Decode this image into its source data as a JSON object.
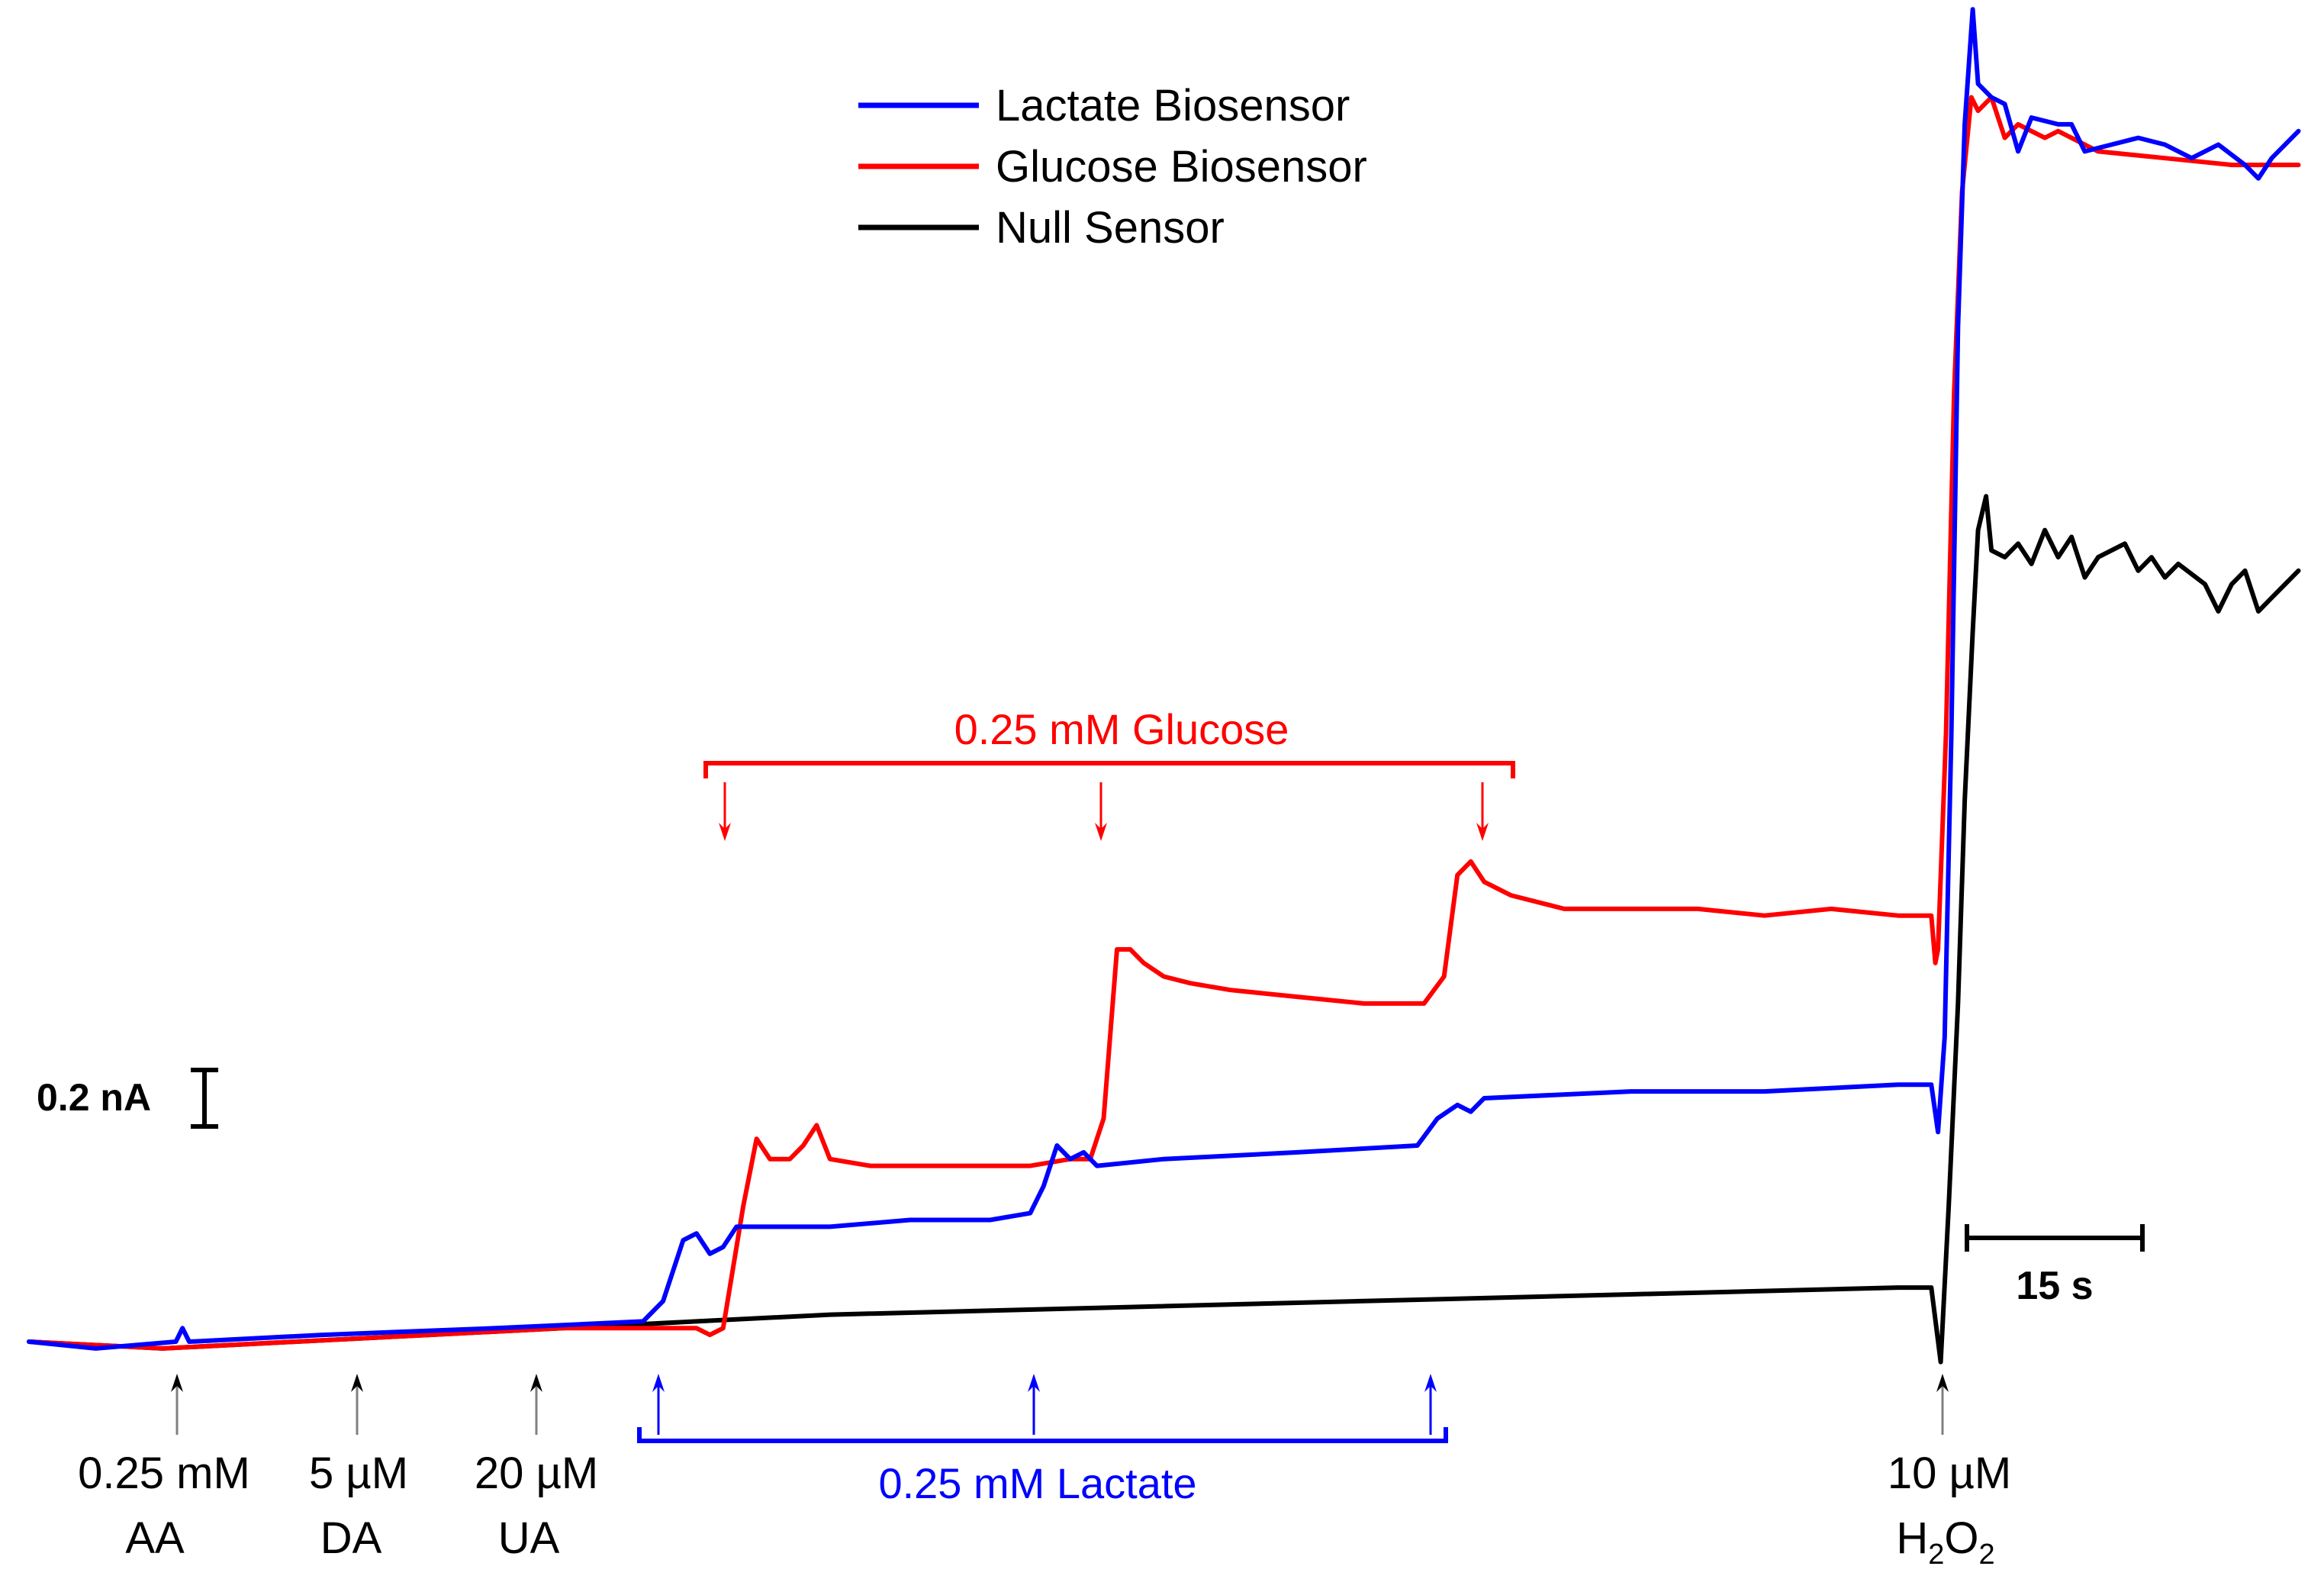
{
  "legend": {
    "placement": "top-center",
    "entries": [
      {
        "label": "Lactate Biosensor",
        "color": "#0000ff"
      },
      {
        "label": "Glucose Biosensor",
        "color": "#ff0000"
      },
      {
        "label": "Null Sensor",
        "color": "#000000"
      }
    ]
  },
  "scale_bars": {
    "current_label": "0.2 nA",
    "time_label": "15 s"
  },
  "annotations": {
    "glucose_bracket_label": "0.25 mM Glucose",
    "lactate_bracket_label": "0.25 mM Lactate",
    "interferents": [
      {
        "line1": "0.25 mM",
        "line2": "AA"
      },
      {
        "line1": "5 µM",
        "line2": "DA"
      },
      {
        "line1": "20 µM",
        "line2": "UA"
      }
    ],
    "h2o2": {
      "line1": "10 µM",
      "h": "H",
      "sub1": "2",
      "o": "O",
      "sub2": "2"
    }
  },
  "colors": {
    "lactate": "#0000ff",
    "glucose": "#ff0000",
    "null": "#000000",
    "arrow_gray": "#808080"
  },
  "chart_data": {
    "type": "line",
    "title": "",
    "xlabel": "",
    "ylabel": "",
    "grid": false,
    "x_units": "s",
    "y_units": "nA",
    "xlim": [
      0,
      171
    ],
    "ylim": [
      0,
      1.95
    ],
    "series": [
      {
        "name": "Lactate Biosensor",
        "color": "#0000ff",
        "points": [
          [
            0,
            0.0
          ],
          [
            5,
            -0.01
          ],
          [
            11,
            0.0
          ],
          [
            11.5,
            0.02
          ],
          [
            12,
            0.0
          ],
          [
            22,
            0.01
          ],
          [
            35,
            0.02
          ],
          [
            46,
            0.03
          ],
          [
            47.5,
            0.06
          ],
          [
            49,
            0.15
          ],
          [
            50,
            0.16
          ],
          [
            51,
            0.13
          ],
          [
            52,
            0.14
          ],
          [
            53,
            0.17
          ],
          [
            55,
            0.17
          ],
          [
            60,
            0.17
          ],
          [
            66,
            0.18
          ],
          [
            72,
            0.18
          ],
          [
            75,
            0.19
          ],
          [
            76,
            0.23
          ],
          [
            77,
            0.29
          ],
          [
            78,
            0.27
          ],
          [
            79,
            0.28
          ],
          [
            80,
            0.26
          ],
          [
            85,
            0.27
          ],
          [
            95,
            0.28
          ],
          [
            104,
            0.29
          ],
          [
            105.5,
            0.33
          ],
          [
            107,
            0.35
          ],
          [
            108,
            0.34
          ],
          [
            109,
            0.36
          ],
          [
            120,
            0.37
          ],
          [
            130,
            0.37
          ],
          [
            140,
            0.38
          ],
          [
            142.5,
            0.38
          ],
          [
            143,
            0.31
          ],
          [
            143.5,
            0.45
          ],
          [
            144,
            0.9
          ],
          [
            144.5,
            1.5
          ],
          [
            145,
            1.8
          ],
          [
            145.6,
            1.97
          ],
          [
            146,
            1.86
          ],
          [
            147,
            1.84
          ],
          [
            148,
            1.83
          ],
          [
            149,
            1.76
          ],
          [
            150,
            1.81
          ],
          [
            152,
            1.8
          ],
          [
            153,
            1.8
          ],
          [
            154,
            1.76
          ],
          [
            156,
            1.77
          ],
          [
            158,
            1.78
          ],
          [
            160,
            1.77
          ],
          [
            162,
            1.75
          ],
          [
            164,
            1.77
          ],
          [
            166,
            1.74
          ],
          [
            167,
            1.72
          ],
          [
            168,
            1.75
          ],
          [
            170,
            1.79
          ]
        ]
      },
      {
        "name": "Glucose Biosensor",
        "color": "#ff0000",
        "points": [
          [
            0,
            0.0
          ],
          [
            10,
            -0.01
          ],
          [
            20,
            0.0
          ],
          [
            30,
            0.01
          ],
          [
            40,
            0.02
          ],
          [
            50,
            0.02
          ],
          [
            51,
            0.01
          ],
          [
            52,
            0.02
          ],
          [
            53.5,
            0.2
          ],
          [
            54.5,
            0.3
          ],
          [
            55.5,
            0.27
          ],
          [
            57,
            0.27
          ],
          [
            58,
            0.29
          ],
          [
            59,
            0.32
          ],
          [
            60,
            0.27
          ],
          [
            63,
            0.26
          ],
          [
            70,
            0.26
          ],
          [
            75,
            0.26
          ],
          [
            78,
            0.27
          ],
          [
            79.5,
            0.27
          ],
          [
            80.5,
            0.33
          ],
          [
            81.5,
            0.58
          ],
          [
            82.5,
            0.58
          ],
          [
            83.5,
            0.56
          ],
          [
            85,
            0.54
          ],
          [
            87,
            0.53
          ],
          [
            90,
            0.52
          ],
          [
            95,
            0.51
          ],
          [
            100,
            0.5
          ],
          [
            104.5,
            0.5
          ],
          [
            106,
            0.54
          ],
          [
            107,
            0.69
          ],
          [
            108,
            0.71
          ],
          [
            109,
            0.68
          ],
          [
            111,
            0.66
          ],
          [
            115,
            0.64
          ],
          [
            120,
            0.64
          ],
          [
            125,
            0.64
          ],
          [
            130,
            0.63
          ],
          [
            135,
            0.64
          ],
          [
            140,
            0.63
          ],
          [
            142.5,
            0.63
          ],
          [
            142.8,
            0.56
          ],
          [
            143,
            0.58
          ],
          [
            143.6,
            0.9
          ],
          [
            144.2,
            1.4
          ],
          [
            144.8,
            1.7
          ],
          [
            145.5,
            1.84
          ],
          [
            146,
            1.82
          ],
          [
            147,
            1.84
          ],
          [
            148,
            1.78
          ],
          [
            149,
            1.8
          ],
          [
            150,
            1.79
          ],
          [
            151,
            1.78
          ],
          [
            152,
            1.79
          ],
          [
            155,
            1.76
          ],
          [
            160,
            1.75
          ],
          [
            165,
            1.74
          ],
          [
            170,
            1.74
          ]
        ]
      },
      {
        "name": "Null Sensor",
        "color": "#000000",
        "points": [
          [
            0,
            0.0
          ],
          [
            10,
            -0.01
          ],
          [
            20,
            0.0
          ],
          [
            30,
            0.01
          ],
          [
            40,
            0.02
          ],
          [
            50,
            0.03
          ],
          [
            60,
            0.04
          ],
          [
            80,
            0.05
          ],
          [
            100,
            0.06
          ],
          [
            120,
            0.07
          ],
          [
            140,
            0.08
          ],
          [
            142.5,
            0.08
          ],
          [
            143.2,
            -0.03
          ],
          [
            143.8,
            0.2
          ],
          [
            144.5,
            0.5
          ],
          [
            145,
            0.8
          ],
          [
            145.6,
            1.05
          ],
          [
            146,
            1.2
          ],
          [
            146.6,
            1.25
          ],
          [
            147,
            1.17
          ],
          [
            148,
            1.16
          ],
          [
            149,
            1.18
          ],
          [
            150,
            1.15
          ],
          [
            151,
            1.2
          ],
          [
            152,
            1.16
          ],
          [
            153,
            1.19
          ],
          [
            154,
            1.13
          ],
          [
            155,
            1.16
          ],
          [
            157,
            1.18
          ],
          [
            158,
            1.14
          ],
          [
            159,
            1.16
          ],
          [
            160,
            1.13
          ],
          [
            161,
            1.15
          ],
          [
            163,
            1.12
          ],
          [
            164,
            1.08
          ],
          [
            165,
            1.12
          ],
          [
            166,
            1.14
          ],
          [
            167,
            1.08
          ],
          [
            168,
            1.1
          ],
          [
            169,
            1.12
          ],
          [
            170,
            1.14
          ]
        ]
      }
    ],
    "additions": [
      {
        "label": "0.25 mM AA",
        "t": 11,
        "target": "all"
      },
      {
        "label": "5 µM DA",
        "t": 24,
        "target": "all"
      },
      {
        "label": "20 µM UA",
        "t": 37,
        "target": "all"
      },
      {
        "label": "0.25 mM Lactate",
        "t": 46,
        "target": "lactate"
      },
      {
        "label": "0.25 mM Glucose",
        "t": 51,
        "target": "glucose"
      },
      {
        "label": "0.25 mM Lactate",
        "t": 75,
        "target": "lactate"
      },
      {
        "label": "0.25 mM Glucose",
        "t": 79,
        "target": "glucose"
      },
      {
        "label": "0.25 mM Glucose",
        "t": 107,
        "target": "glucose"
      },
      {
        "label": "0.25 mM Lactate",
        "t": 104,
        "target": "lactate"
      },
      {
        "label": "10 µM H2O2",
        "t": 143,
        "target": "all"
      }
    ],
    "scale_bar_values": {
      "current_nA": 0.2,
      "time_s": 15
    }
  }
}
